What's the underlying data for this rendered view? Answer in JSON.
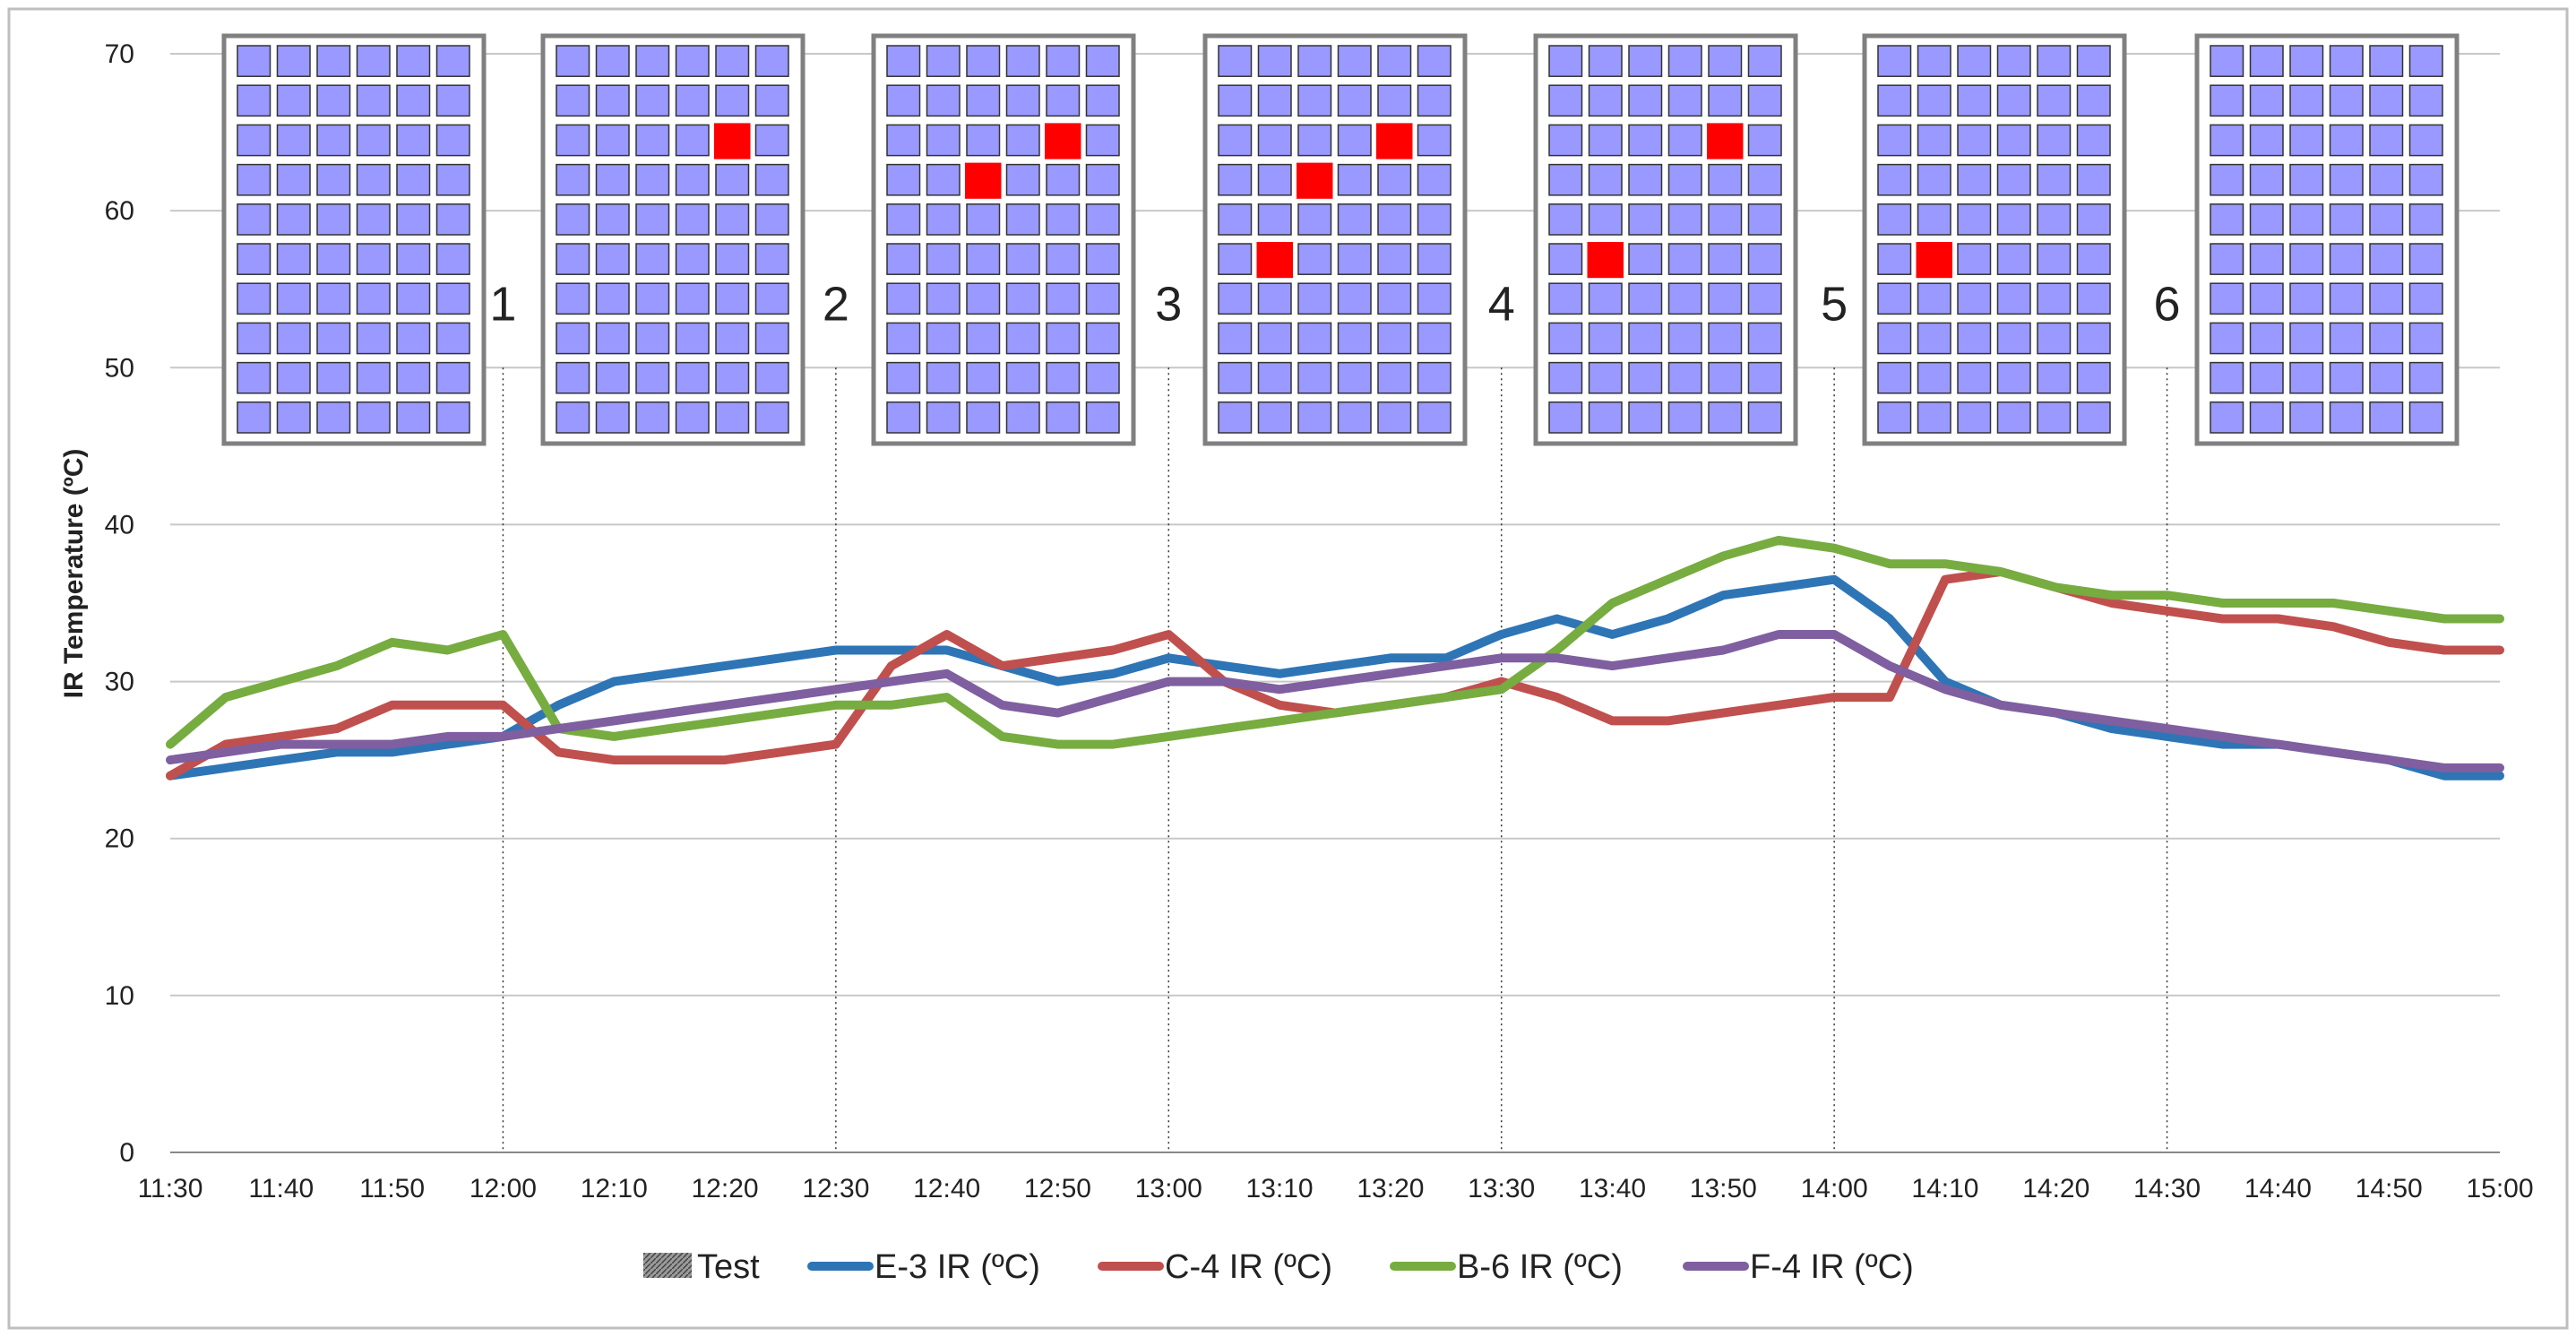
{
  "chart_data": {
    "type": "line",
    "title": "",
    "xlabel": "",
    "ylabel": "IR Temperature (ºC)",
    "ylim": [
      0,
      70
    ],
    "yticks": [
      0,
      10,
      20,
      30,
      40,
      50,
      60,
      70
    ],
    "xlim": [
      "11:30",
      "15:00"
    ],
    "xticks": [
      "11:30",
      "11:40",
      "11:50",
      "12:00",
      "12:10",
      "12:20",
      "12:30",
      "12:40",
      "12:50",
      "13:00",
      "13:10",
      "13:20",
      "13:30",
      "13:40",
      "13:50",
      "14:00",
      "14:10",
      "14:20",
      "14:30",
      "14:40",
      "14:50",
      "15:00"
    ],
    "grid": true,
    "legend_position": "bottom",
    "legend": [
      {
        "name": "Test",
        "color": "#7f7f7f",
        "pattern": "hatched"
      },
      {
        "name": "E-3 IR (ºC)",
        "color": "#2e75b6"
      },
      {
        "name": "C-4 IR (ºC)",
        "color": "#c0504d"
      },
      {
        "name": "B-6 IR (ºC)",
        "color": "#77ac40"
      },
      {
        "name": "F-4 IR (ºC)",
        "color": "#7f5fa0"
      }
    ],
    "test_markers": [
      {
        "label": "1",
        "time": "12:00"
      },
      {
        "label": "2",
        "time": "12:30"
      },
      {
        "label": "3",
        "time": "13:00"
      },
      {
        "label": "4",
        "time": "13:30"
      },
      {
        "label": "5",
        "time": "14:00"
      },
      {
        "label": "6",
        "time": "14:30"
      }
    ],
    "panel_rows": 10,
    "panel_cols": 6,
    "panel_hot_cells": [
      [],
      [
        [
          2,
          4
        ]
      ],
      [
        [
          2,
          4
        ],
        [
          3,
          2
        ]
      ],
      [
        [
          2,
          4
        ],
        [
          3,
          2
        ],
        [
          5,
          1
        ]
      ],
      [
        [
          2,
          4
        ],
        [
          5,
          1
        ]
      ],
      [
        [
          5,
          1
        ]
      ],
      []
    ],
    "series": [
      {
        "name": "E-3 IR (ºC)",
        "color": "#2e75b6",
        "x": [
          "11:30",
          "11:35",
          "11:40",
          "11:45",
          "11:50",
          "11:55",
          "12:00",
          "12:05",
          "12:10",
          "12:15",
          "12:20",
          "12:25",
          "12:30",
          "12:35",
          "12:40",
          "12:45",
          "12:50",
          "12:55",
          "13:00",
          "13:05",
          "13:10",
          "13:15",
          "13:20",
          "13:25",
          "13:30",
          "13:35",
          "13:40",
          "13:45",
          "13:50",
          "13:55",
          "14:00",
          "14:05",
          "14:10",
          "14:15",
          "14:20",
          "14:25",
          "14:30",
          "14:35",
          "14:40",
          "14:45",
          "14:50",
          "14:55",
          "15:00"
        ],
        "values": [
          24,
          24.5,
          25,
          25.5,
          25.5,
          26,
          26.5,
          28.5,
          30,
          30.5,
          31,
          31.5,
          32,
          32,
          32,
          31,
          30,
          30.5,
          31.5,
          31,
          30.5,
          31,
          31.5,
          31.5,
          33,
          34,
          33,
          34,
          35.5,
          36,
          36.5,
          34,
          30,
          28.5,
          28,
          27,
          26.5,
          26,
          26,
          25.5,
          25,
          24,
          24
        ]
      },
      {
        "name": "C-4 IR (ºC)",
        "color": "#c0504d",
        "x": [
          "11:30",
          "11:35",
          "11:40",
          "11:45",
          "11:50",
          "11:55",
          "12:00",
          "12:05",
          "12:10",
          "12:15",
          "12:20",
          "12:25",
          "12:30",
          "12:35",
          "12:40",
          "12:45",
          "12:50",
          "12:55",
          "13:00",
          "13:05",
          "13:10",
          "13:15",
          "13:20",
          "13:25",
          "13:30",
          "13:35",
          "13:40",
          "13:45",
          "13:50",
          "13:55",
          "14:00",
          "14:05",
          "14:10",
          "14:15",
          "14:20",
          "14:25",
          "14:30",
          "14:35",
          "14:40",
          "14:45",
          "14:50",
          "14:55",
          "15:00"
        ],
        "values": [
          24,
          26,
          26.5,
          27,
          28.5,
          28.5,
          28.5,
          25.5,
          25,
          25,
          25,
          25.5,
          26,
          31,
          33,
          31,
          31.5,
          32,
          33,
          30,
          28.5,
          28,
          28.5,
          29,
          30,
          29,
          27.5,
          27.5,
          28,
          28.5,
          29,
          29,
          36.5,
          37,
          36,
          35,
          34.5,
          34,
          34,
          33.5,
          32.5,
          32,
          32
        ]
      },
      {
        "name": "B-6 IR (ºC)",
        "color": "#77ac40",
        "x": [
          "11:30",
          "11:35",
          "11:40",
          "11:45",
          "11:50",
          "11:55",
          "12:00",
          "12:05",
          "12:10",
          "12:15",
          "12:20",
          "12:25",
          "12:30",
          "12:35",
          "12:40",
          "12:45",
          "12:50",
          "12:55",
          "13:00",
          "13:05",
          "13:10",
          "13:15",
          "13:20",
          "13:25",
          "13:30",
          "13:35",
          "13:40",
          "13:45",
          "13:50",
          "13:55",
          "14:00",
          "14:05",
          "14:10",
          "14:15",
          "14:20",
          "14:25",
          "14:30",
          "14:35",
          "14:40",
          "14:45",
          "14:50",
          "14:55",
          "15:00"
        ],
        "values": [
          26,
          29,
          30,
          31,
          32.5,
          32,
          33,
          27,
          26.5,
          27,
          27.5,
          28,
          28.5,
          28.5,
          29,
          26.5,
          26,
          26,
          26.5,
          27,
          27.5,
          28,
          28.5,
          29,
          29.5,
          32,
          35,
          36.5,
          38,
          39,
          38.5,
          37.5,
          37.5,
          37,
          36,
          35.5,
          35.5,
          35,
          35,
          35,
          34.5,
          34,
          34
        ]
      },
      {
        "name": "F-4 IR (ºC)",
        "color": "#7f5fa0",
        "x": [
          "11:30",
          "11:35",
          "11:40",
          "11:45",
          "11:50",
          "11:55",
          "12:00",
          "12:05",
          "12:10",
          "12:15",
          "12:20",
          "12:25",
          "12:30",
          "12:35",
          "12:40",
          "12:45",
          "12:50",
          "12:55",
          "13:00",
          "13:05",
          "13:10",
          "13:15",
          "13:20",
          "13:25",
          "13:30",
          "13:35",
          "13:40",
          "13:45",
          "13:50",
          "13:55",
          "14:00",
          "14:05",
          "14:10",
          "14:15",
          "14:20",
          "14:25",
          "14:30",
          "14:35",
          "14:40",
          "14:45",
          "14:50",
          "14:55",
          "15:00"
        ],
        "values": [
          25,
          25.5,
          26,
          26,
          26,
          26.5,
          26.5,
          27,
          27.5,
          28,
          28.5,
          29,
          29.5,
          30,
          30.5,
          28.5,
          28,
          29,
          30,
          30,
          29.5,
          30,
          30.5,
          31,
          31.5,
          31.5,
          31,
          31.5,
          32,
          33,
          33,
          31,
          29.5,
          28.5,
          28,
          27.5,
          27,
          26.5,
          26,
          25.5,
          25,
          24.5,
          24.5
        ]
      }
    ]
  }
}
